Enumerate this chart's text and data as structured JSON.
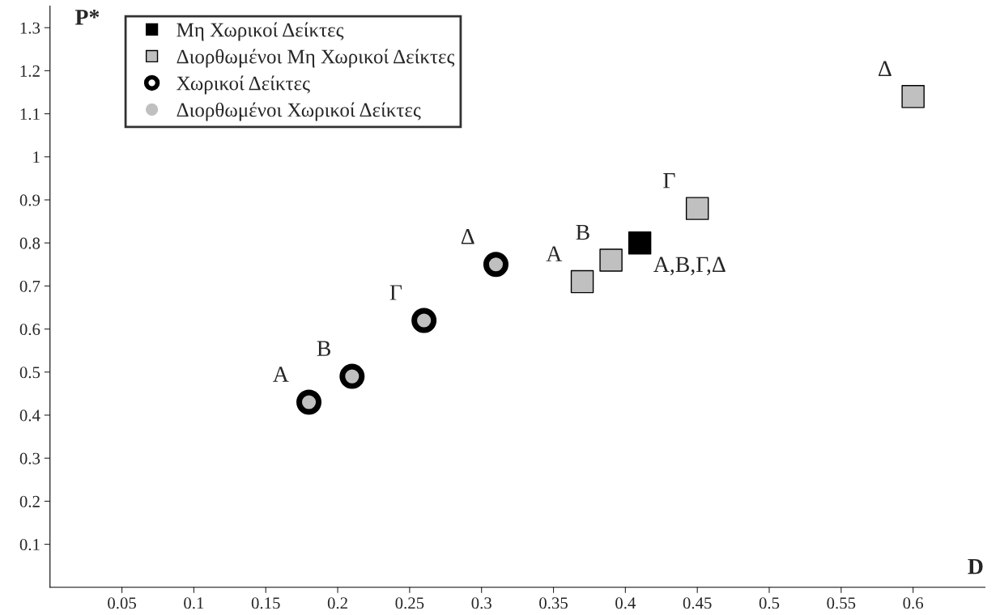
{
  "chart_data": {
    "type": "scatter",
    "xlabel": "D",
    "ylabel": "P*",
    "xlim": [
      0,
      0.65
    ],
    "ylim": [
      0,
      1.35
    ],
    "xticks": [
      0.05,
      0.1,
      0.15,
      0.2,
      0.25,
      0.3,
      0.35,
      0.4,
      0.45,
      0.5,
      0.55,
      0.6
    ],
    "yticks": [
      0.1,
      0.2,
      0.3,
      0.4,
      0.5,
      0.6,
      0.7,
      0.8,
      0.9,
      1,
      1.1,
      1.2,
      1.3
    ],
    "grid": false,
    "legend": "top left",
    "series": [
      {
        "name": "Μη Χωρικοί Δείκτες",
        "color": "#000000",
        "marker": "square",
        "x": [
          0.41
        ],
        "values": [
          0.8
        ]
      },
      {
        "name": "Διορθωμένοι Μη Χωρικοί Δείκτες",
        "color": "#c0c0c0",
        "marker": "square",
        "x": [
          0.37,
          0.39,
          0.45,
          0.6
        ],
        "values": [
          0.71,
          0.76,
          0.88,
          1.14
        ]
      },
      {
        "name": "Χωρικοί Δείκτες",
        "color": "#000000",
        "marker": "circle",
        "x": [
          0.18,
          0.21,
          0.26,
          0.31
        ],
        "values": [
          0.43,
          0.49,
          0.62,
          0.75
        ]
      },
      {
        "name": "Διορθωμένοι Χωρικοί Δείκτες",
        "color": "#c0c0c0",
        "marker": "circle",
        "x": [
          0.18,
          0.21,
          0.26,
          0.31
        ],
        "values": [
          0.43,
          0.49,
          0.62,
          0.75
        ]
      }
    ],
    "annotations": [
      {
        "text": "Α",
        "x": 0.18,
        "y": 0.43
      },
      {
        "text": "Β",
        "x": 0.21,
        "y": 0.49
      },
      {
        "text": "Γ",
        "x": 0.26,
        "y": 0.62
      },
      {
        "text": "Δ",
        "x": 0.31,
        "y": 0.75
      },
      {
        "text": "Α",
        "x": 0.37,
        "y": 0.71
      },
      {
        "text": "Β",
        "x": 0.39,
        "y": 0.76
      },
      {
        "text": "Γ",
        "x": 0.45,
        "y": 0.88
      },
      {
        "text": "Δ",
        "x": 0.6,
        "y": 1.14
      },
      {
        "text": "Α,Β,Γ,Δ",
        "x": 0.41,
        "y": 0.8
      }
    ]
  }
}
